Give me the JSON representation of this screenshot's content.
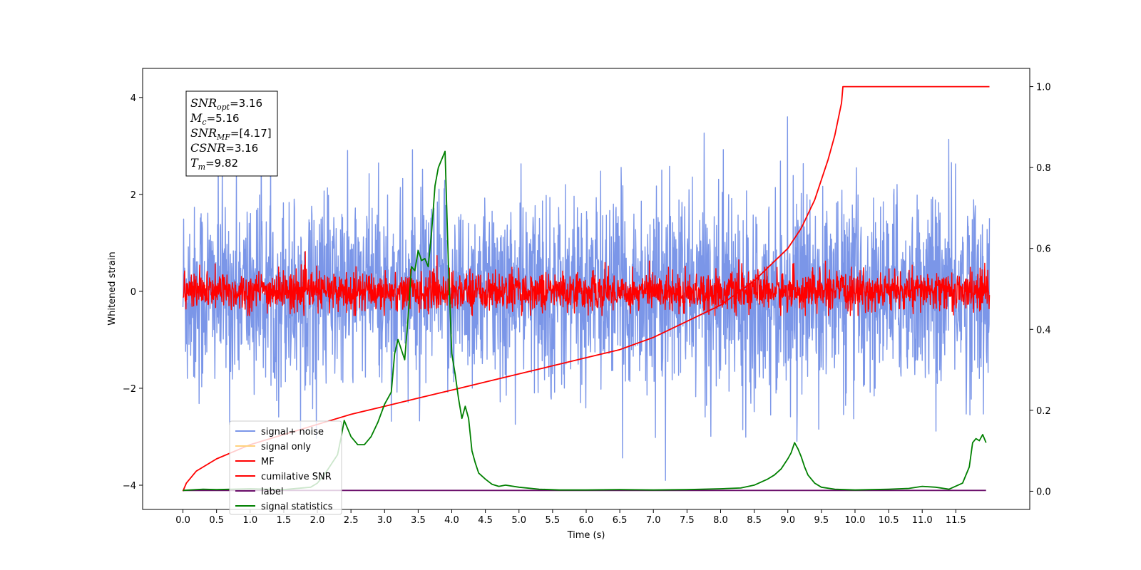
{
  "chart_data": {
    "type": "line",
    "xlabel": "Time (s)",
    "ylabel": "Whitened strain",
    "xlim": [
      -0.6,
      12.6
    ],
    "ylim": [
      -4.5,
      4.6
    ],
    "y2lim": [
      -0.045,
      1.045
    ],
    "xticks": [
      "0.0",
      "0.5",
      "1.0",
      "1.5",
      "2.0",
      "2.5",
      "3.0",
      "3.5",
      "4.0",
      "4.5",
      "5.0",
      "5.5",
      "6.0",
      "6.5",
      "7.0",
      "7.5",
      "8.0",
      "8.5",
      "9.0",
      "9.5",
      "10.0",
      "10.5",
      "11.0",
      "11.5"
    ],
    "yticks": [
      "4",
      "2",
      "0",
      "−2",
      "−4"
    ],
    "y2ticks": [
      "1.0",
      "0.8",
      "0.6",
      "0.4",
      "0.2",
      "0.0"
    ],
    "annotation": {
      "lines": [
        {
          "var": "SNR",
          "sub": "opt",
          "value": "=3.16"
        },
        {
          "var": "M",
          "sub": "c",
          "value": "=5.16"
        },
        {
          "var": "SNR",
          "sub": "MF",
          "value": "=[4.17]"
        },
        {
          "var": "CSNR",
          "sub": "",
          "value": "=3.16"
        },
        {
          "var": "T",
          "sub": "m",
          "value": "=9.82"
        }
      ]
    },
    "legend": {
      "placement": "lower-left",
      "entries": [
        {
          "label": "signal+ noise",
          "color": "#7b96e8"
        },
        {
          "label": "signal only",
          "color": "#ffd27f"
        },
        {
          "label": "MF",
          "color": "#ff0000"
        },
        {
          "label": "cumilative SNR",
          "color": "#ff0000"
        },
        {
          "label": "label",
          "color": "#6a0d6a"
        },
        {
          "label": "signal statistics",
          "color": "#008000"
        }
      ]
    },
    "series": [
      {
        "name": "signal+ noise",
        "axis": "left",
        "color": "#7b96e8",
        "kind": "noise",
        "x_range": [
          0,
          12
        ],
        "mean": 0,
        "std": 1.0,
        "min": -3.9,
        "max": 4.2
      },
      {
        "name": "MF",
        "axis": "left",
        "color": "#ff0000",
        "kind": "noise",
        "x_range": [
          0,
          12
        ],
        "mean": 0,
        "std": 0.2,
        "min": -0.5,
        "max": 0.95
      },
      {
        "name": "cumilative SNR",
        "axis": "right",
        "color": "#ff0000",
        "x": [
          0.0,
          0.05,
          0.2,
          0.5,
          1.0,
          1.5,
          2.0,
          2.5,
          3.0,
          3.5,
          4.0,
          4.5,
          5.0,
          5.5,
          6.0,
          6.5,
          7.0,
          7.5,
          8.0,
          8.5,
          9.0,
          9.2,
          9.4,
          9.6,
          9.7,
          9.8,
          9.82,
          10.0,
          11.0,
          12.0
        ],
        "y": [
          0.0,
          0.02,
          0.05,
          0.08,
          0.115,
          0.14,
          0.165,
          0.19,
          0.21,
          0.23,
          0.25,
          0.27,
          0.29,
          0.31,
          0.33,
          0.35,
          0.38,
          0.42,
          0.46,
          0.52,
          0.6,
          0.65,
          0.72,
          0.82,
          0.88,
          0.96,
          1.0,
          1.0,
          1.0,
          1.0
        ]
      },
      {
        "name": "label",
        "axis": "right",
        "color": "#6a0d6a",
        "x": [
          0.0,
          11.95
        ],
        "y": [
          0.002,
          0.002
        ]
      },
      {
        "name": "signal statistics",
        "axis": "right",
        "color": "#008000",
        "x": [
          0.0,
          0.3,
          0.5,
          1.0,
          1.5,
          1.9,
          2.0,
          2.1,
          2.2,
          2.3,
          2.35,
          2.4,
          2.5,
          2.6,
          2.7,
          2.8,
          2.9,
          3.0,
          3.1,
          3.15,
          3.2,
          3.3,
          3.35,
          3.4,
          3.45,
          3.5,
          3.55,
          3.6,
          3.65,
          3.7,
          3.75,
          3.8,
          3.9,
          3.95,
          4.0,
          4.05,
          4.1,
          4.15,
          4.2,
          4.25,
          4.3,
          4.35,
          4.4,
          4.5,
          4.6,
          4.7,
          4.8,
          5.0,
          5.3,
          5.6,
          6.0,
          6.5,
          7.0,
          7.5,
          8.0,
          8.3,
          8.5,
          8.7,
          8.8,
          8.9,
          9.0,
          9.05,
          9.1,
          9.15,
          9.2,
          9.25,
          9.3,
          9.4,
          9.5,
          9.7,
          10.0,
          10.5,
          10.8,
          11.0,
          11.2,
          11.4,
          11.6,
          11.7,
          11.75,
          11.8,
          11.85,
          11.9,
          11.95
        ],
        "y": [
          0.002,
          0.005,
          0.004,
          0.006,
          0.004,
          0.01,
          0.02,
          0.04,
          0.065,
          0.09,
          0.13,
          0.175,
          0.135,
          0.115,
          0.115,
          0.135,
          0.17,
          0.215,
          0.245,
          0.34,
          0.375,
          0.325,
          0.43,
          0.555,
          0.545,
          0.595,
          0.57,
          0.575,
          0.555,
          0.64,
          0.755,
          0.8,
          0.84,
          0.56,
          0.34,
          0.29,
          0.23,
          0.18,
          0.21,
          0.18,
          0.1,
          0.07,
          0.045,
          0.03,
          0.017,
          0.012,
          0.015,
          0.01,
          0.005,
          0.003,
          0.003,
          0.004,
          0.003,
          0.004,
          0.006,
          0.008,
          0.015,
          0.03,
          0.04,
          0.055,
          0.08,
          0.095,
          0.12,
          0.105,
          0.085,
          0.06,
          0.04,
          0.02,
          0.01,
          0.005,
          0.003,
          0.005,
          0.007,
          0.012,
          0.01,
          0.005,
          0.02,
          0.06,
          0.12,
          0.13,
          0.125,
          0.14,
          0.12
        ]
      }
    ]
  }
}
